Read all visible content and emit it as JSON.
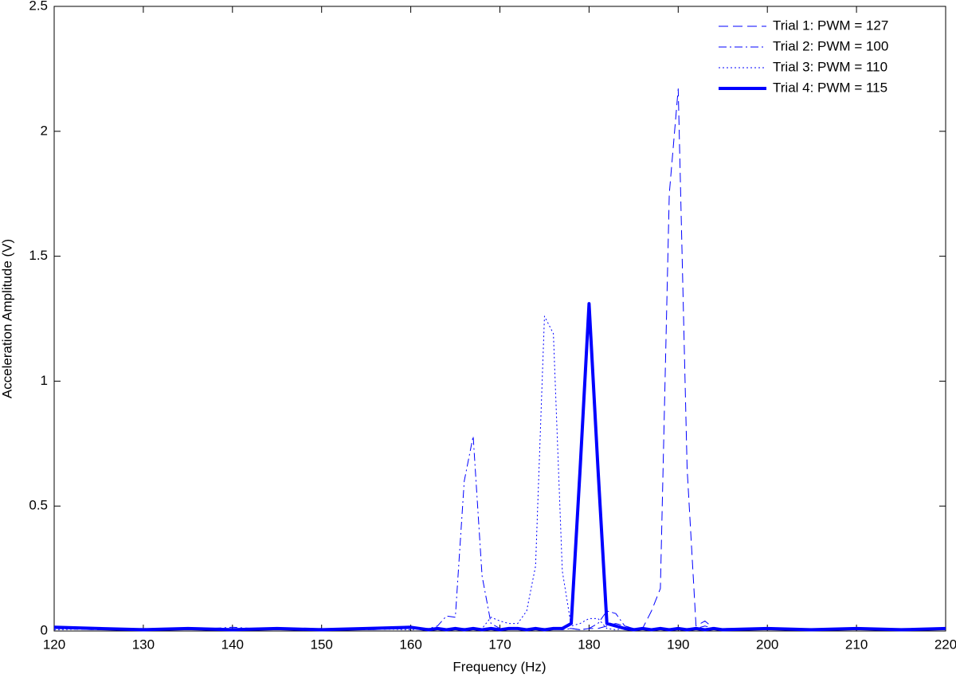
{
  "chart_data": {
    "type": "line",
    "xlabel": "Frequency (Hz)",
    "ylabel": "Acceleration Amplitude (V)",
    "x": [
      120,
      125,
      130,
      135,
      140,
      145,
      150,
      155,
      160,
      162,
      163,
      164,
      165,
      166,
      167,
      168,
      169,
      170,
      171,
      172,
      173,
      174,
      175,
      176,
      177,
      178,
      179,
      180,
      181,
      182,
      183,
      184,
      185,
      186,
      187,
      188,
      189,
      190,
      191,
      192,
      193,
      194,
      195,
      200,
      205,
      210,
      215,
      220
    ],
    "series": [
      {
        "name": "Trial 1: PWM = 127",
        "color": "#0000ff",
        "style": "dashed",
        "linewidth": 1,
        "values": [
          0.01,
          0.005,
          0.01,
          0.005,
          0.01,
          0.005,
          0.01,
          0.005,
          0.01,
          0.01,
          0.01,
          0.005,
          0.01,
          0.01,
          0.005,
          0.01,
          0.01,
          0.005,
          0.01,
          0.01,
          0.005,
          0.01,
          0.01,
          0.005,
          0.01,
          0.01,
          0.005,
          0.01,
          0.01,
          0.02,
          0.03,
          0.02,
          0.01,
          0.01,
          0.08,
          0.17,
          1.75,
          2.17,
          0.65,
          0.02,
          0.04,
          0.01,
          0.01,
          0.01,
          0.005,
          0.01,
          0.005,
          0.01
        ]
      },
      {
        "name": "Trial 2: PWM = 100",
        "color": "#0000ff",
        "style": "dashdot",
        "linewidth": 1,
        "values": [
          0.01,
          0.005,
          0.01,
          0.005,
          0.015,
          0.005,
          0.01,
          0.005,
          0.01,
          0.01,
          0.02,
          0.06,
          0.055,
          0.6,
          0.78,
          0.22,
          0.03,
          0.01,
          0.005,
          0.01,
          0.005,
          0.01,
          0.005,
          0.01,
          0.005,
          0.01,
          0.005,
          0.01,
          0.03,
          0.08,
          0.07,
          0.02,
          0.01,
          0.005,
          0.01,
          0.005,
          0.01,
          0.005,
          0.01,
          0.01,
          0.02,
          0.01,
          0.005,
          0.01,
          0.005,
          0.01,
          0.005,
          0.01
        ]
      },
      {
        "name": "Trial 3: PWM = 110",
        "color": "#0000ff",
        "style": "dotted",
        "linewidth": 1,
        "values": [
          0.005,
          0.01,
          0.005,
          0.01,
          0.005,
          0.01,
          0.005,
          0.01,
          0.005,
          0.01,
          0.01,
          0.005,
          0.01,
          0.01,
          0.005,
          0.01,
          0.055,
          0.04,
          0.03,
          0.03,
          0.08,
          0.26,
          1.26,
          1.19,
          0.24,
          0.02,
          0.03,
          0.05,
          0.05,
          0.01,
          0.005,
          0.01,
          0.005,
          0.01,
          0.005,
          0.01,
          0.005,
          0.01,
          0.005,
          0.01,
          0.005,
          0.01,
          0.005,
          0.01,
          0.005,
          0.01,
          0.005,
          0.01
        ]
      },
      {
        "name": "Trial 4: PWM = 115",
        "color": "#0000ff",
        "style": "solid",
        "linewidth": 4,
        "values": [
          0.015,
          0.01,
          0.005,
          0.01,
          0.005,
          0.01,
          0.005,
          0.01,
          0.015,
          0.005,
          0.01,
          0.005,
          0.01,
          0.005,
          0.01,
          0.005,
          0.01,
          0.005,
          0.01,
          0.01,
          0.005,
          0.01,
          0.005,
          0.01,
          0.01,
          0.03,
          0.65,
          1.31,
          0.65,
          0.03,
          0.02,
          0.01,
          0.005,
          0.01,
          0.005,
          0.01,
          0.005,
          0.01,
          0.005,
          0.01,
          0.005,
          0.01,
          0.005,
          0.01,
          0.005,
          0.01,
          0.005,
          0.01
        ]
      }
    ],
    "xlim": [
      120,
      220
    ],
    "xticks": [
      120,
      130,
      140,
      150,
      160,
      170,
      180,
      190,
      200,
      210,
      220
    ],
    "ylim": [
      0,
      2.5
    ],
    "yticks": [
      0,
      0.5,
      1,
      1.5,
      2,
      2.5
    ],
    "grid": false,
    "legend": "top-right"
  }
}
